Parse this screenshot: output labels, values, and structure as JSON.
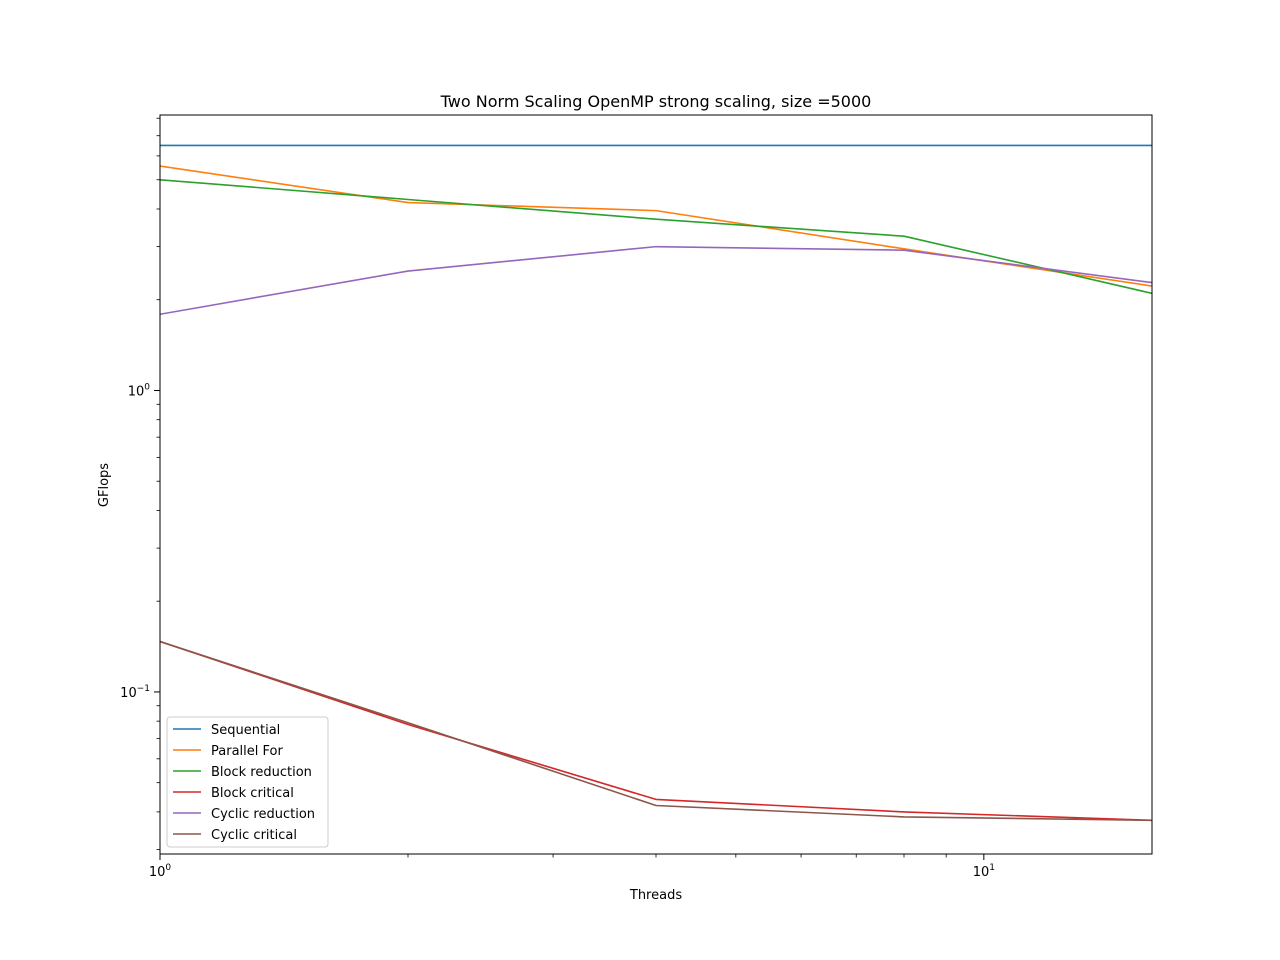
{
  "chart_data": {
    "type": "line",
    "title": "Two Norm Scaling OpenMP strong scaling, size =5000",
    "xlabel": "Threads",
    "ylabel": "GFlops",
    "xscale": "log",
    "yscale": "log",
    "xlim": [
      1,
      16
    ],
    "ylim": [
      0.029,
      8.2
    ],
    "x": [
      1,
      2,
      4,
      8,
      16
    ],
    "x_ticks": [
      {
        "value": 1,
        "base": "10",
        "exp": "0"
      },
      {
        "value": 10,
        "base": "10",
        "exp": "1"
      }
    ],
    "y_ticks": [
      {
        "value": 0.1,
        "base": "10",
        "exp": "−1"
      },
      {
        "value": 1,
        "base": "10",
        "exp": "0"
      }
    ],
    "grid": false,
    "legend_position": "lower-left",
    "series": [
      {
        "name": "Sequential",
        "color": "#1f77b4",
        "values": [
          6.5,
          6.5,
          6.5,
          6.5,
          6.5
        ]
      },
      {
        "name": "Parallel For",
        "color": "#ff7f0e",
        "values": [
          5.55,
          4.2,
          3.95,
          2.95,
          2.22
        ]
      },
      {
        "name": "Block reduction",
        "color": "#2ca02c",
        "values": [
          5.0,
          4.3,
          3.7,
          3.25,
          2.1
        ]
      },
      {
        "name": "Block critical",
        "color": "#d62728",
        "values": [
          0.147,
          0.078,
          0.044,
          0.04,
          0.0375
        ]
      },
      {
        "name": "Cyclic reduction",
        "color": "#9467bd",
        "values": [
          1.79,
          2.49,
          3.0,
          2.92,
          2.28
        ]
      },
      {
        "name": "Cyclic critical",
        "color": "#8c564b",
        "values": [
          0.147,
          0.079,
          0.042,
          0.0385,
          0.0375
        ]
      }
    ]
  }
}
